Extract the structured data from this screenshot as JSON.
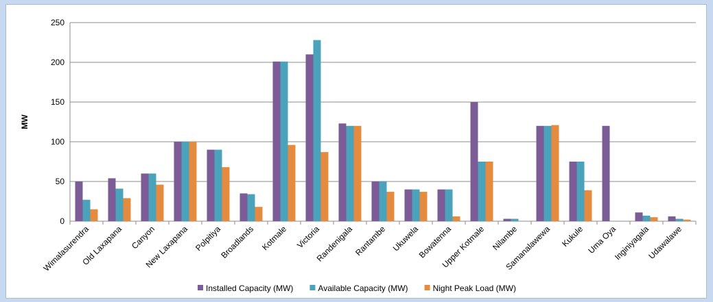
{
  "chart_data": {
    "type": "bar",
    "title": "",
    "xlabel": "",
    "ylabel": "MW",
    "ylim": [
      0,
      250
    ],
    "yticks": [
      0,
      50,
      100,
      150,
      200,
      250
    ],
    "grid": true,
    "legend_position": "bottom",
    "categories": [
      "Wimalasurendra",
      "Old Laxapana",
      "Canyon",
      "New Laxapana",
      "Polpitiya",
      "Broadlands",
      "Kotmale",
      "Victoria",
      "Randenigala",
      "Rantambe",
      "Ukuwela",
      "Bowatenna",
      "Upper Kotmale",
      "Nilambe",
      "Samanalawewa",
      "Kukule",
      "Uma Oya",
      "Inginiyagala",
      "Udawalawe"
    ],
    "series": [
      {
        "name": "Installed Capacity (MW)",
        "color": "#7b5c97",
        "values": [
          50,
          54,
          60,
          100,
          90,
          35,
          201,
          210,
          123,
          50,
          40,
          40,
          150,
          3,
          120,
          75,
          120,
          11,
          6
        ]
      },
      {
        "name": "Available Capacity (MW)",
        "color": "#4aa3bb",
        "values": [
          27,
          41,
          60,
          100,
          90,
          34,
          201,
          228,
          120,
          50,
          40,
          40,
          75,
          3,
          120,
          75,
          0,
          7,
          3
        ]
      },
      {
        "name": "Night Peak Load (MW)",
        "color": "#e58b3f",
        "values": [
          15,
          29,
          46,
          100,
          68,
          18,
          96,
          87,
          120,
          37,
          37,
          6,
          75,
          0,
          121,
          39,
          0,
          5,
          2
        ]
      }
    ]
  }
}
